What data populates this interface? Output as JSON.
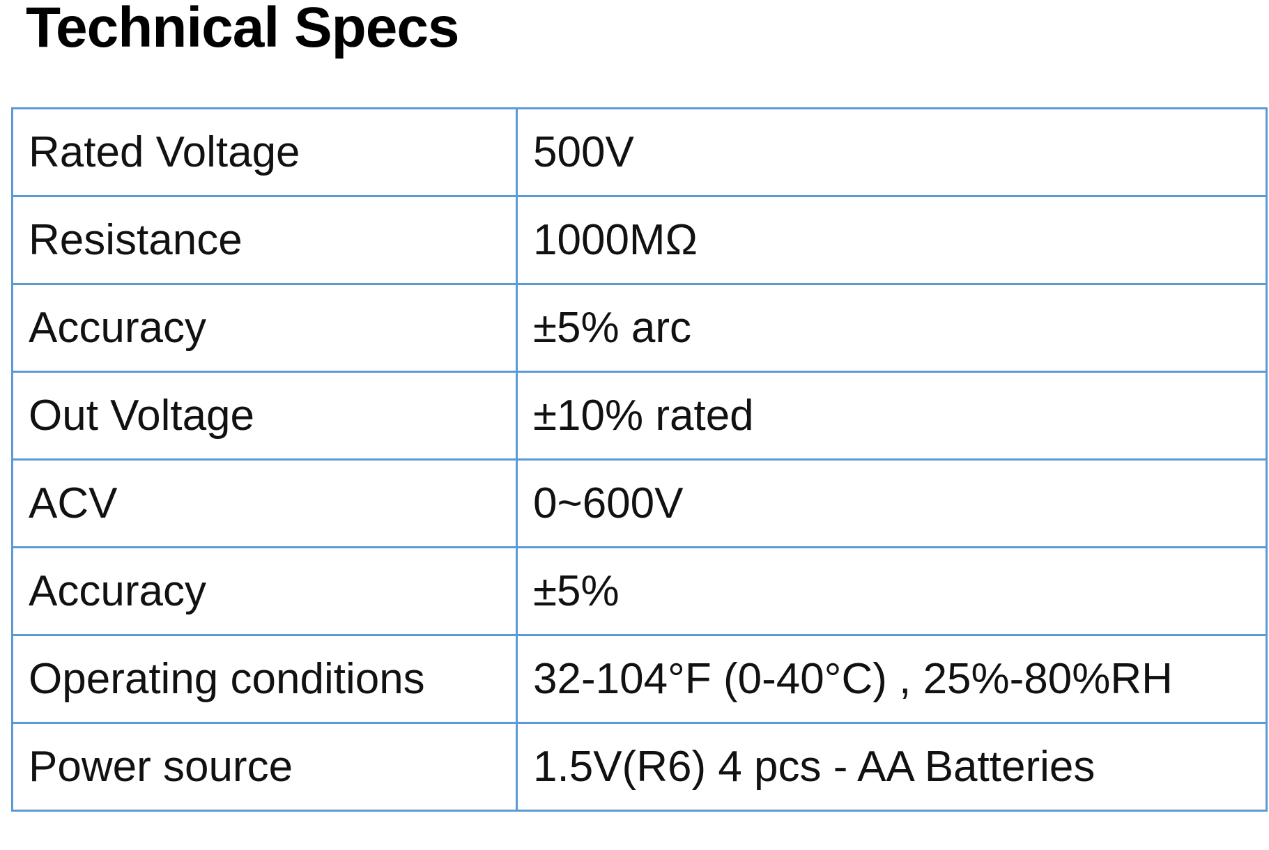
{
  "title": "Technical Specs",
  "colors": {
    "border": "#5b9bd5",
    "text": "#111111"
  },
  "specs": [
    {
      "label": "Rated Voltage",
      "value": "500V"
    },
    {
      "label": "Resistance",
      "value": "1000MΩ"
    },
    {
      "label": "Accuracy",
      "value": "±5% arc"
    },
    {
      "label": "Out Voltage",
      "value": "±10% rated"
    },
    {
      "label": "ACV",
      "value": "0~600V"
    },
    {
      "label": "Accuracy",
      "value": "±5%"
    },
    {
      "label": "Operating conditions",
      "value": "32-104°F (0-40°C) , 25%-80%RH"
    },
    {
      "label": "Power source",
      "value": "1.5V(R6) 4 pcs  - AA Batteries"
    }
  ]
}
